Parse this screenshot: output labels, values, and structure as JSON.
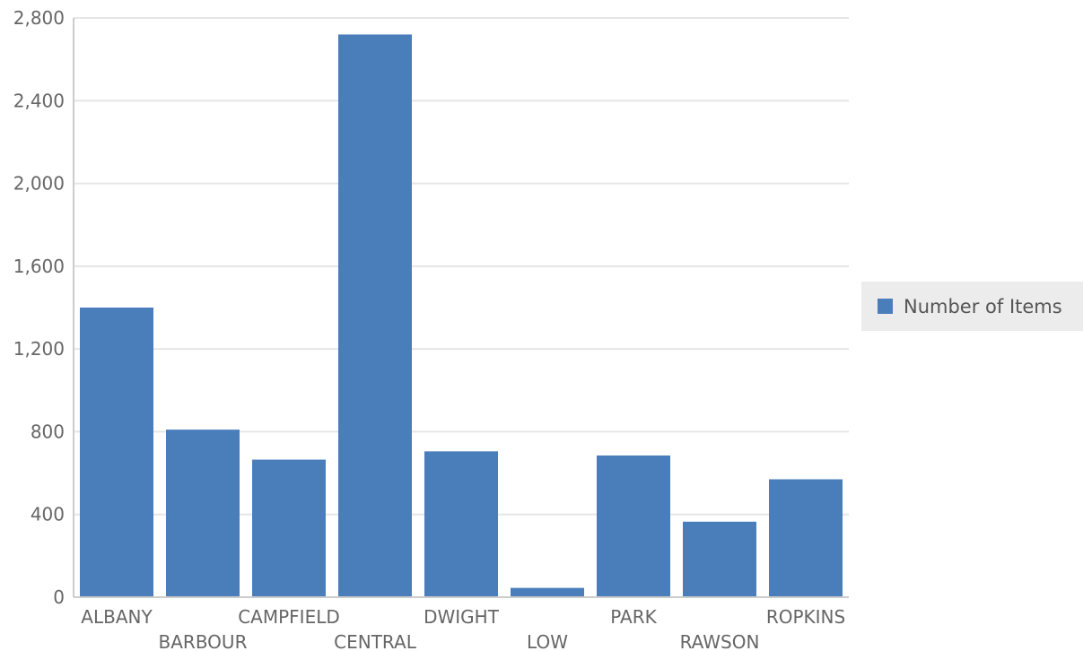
{
  "chart_data": {
    "type": "bar",
    "categories": [
      "ALBANY",
      "BARBOUR",
      "CAMPFIELD",
      "CENTRAL",
      "DWIGHT",
      "LOW",
      "PARK",
      "RAWSON",
      "ROPKINS"
    ],
    "series": [
      {
        "name": "Number of Items",
        "values": [
          1400,
          810,
          665,
          2720,
          705,
          45,
          685,
          365,
          570
        ]
      }
    ],
    "ylim": [
      0,
      2800
    ],
    "yticks": [
      0,
      400,
      800,
      1200,
      1600,
      2000,
      2400,
      2800
    ],
    "ytick_labels": [
      "0",
      "400",
      "800",
      "1,200",
      "1,600",
      "2,000",
      "2,400",
      "2,800"
    ],
    "grid": true,
    "legend_position": "right",
    "colors": {
      "bar": "#4a7ebb",
      "grid": "#e6e6e6",
      "axis": "#cccccc",
      "text": "#666666",
      "legend_bg": "#ececec"
    }
  }
}
